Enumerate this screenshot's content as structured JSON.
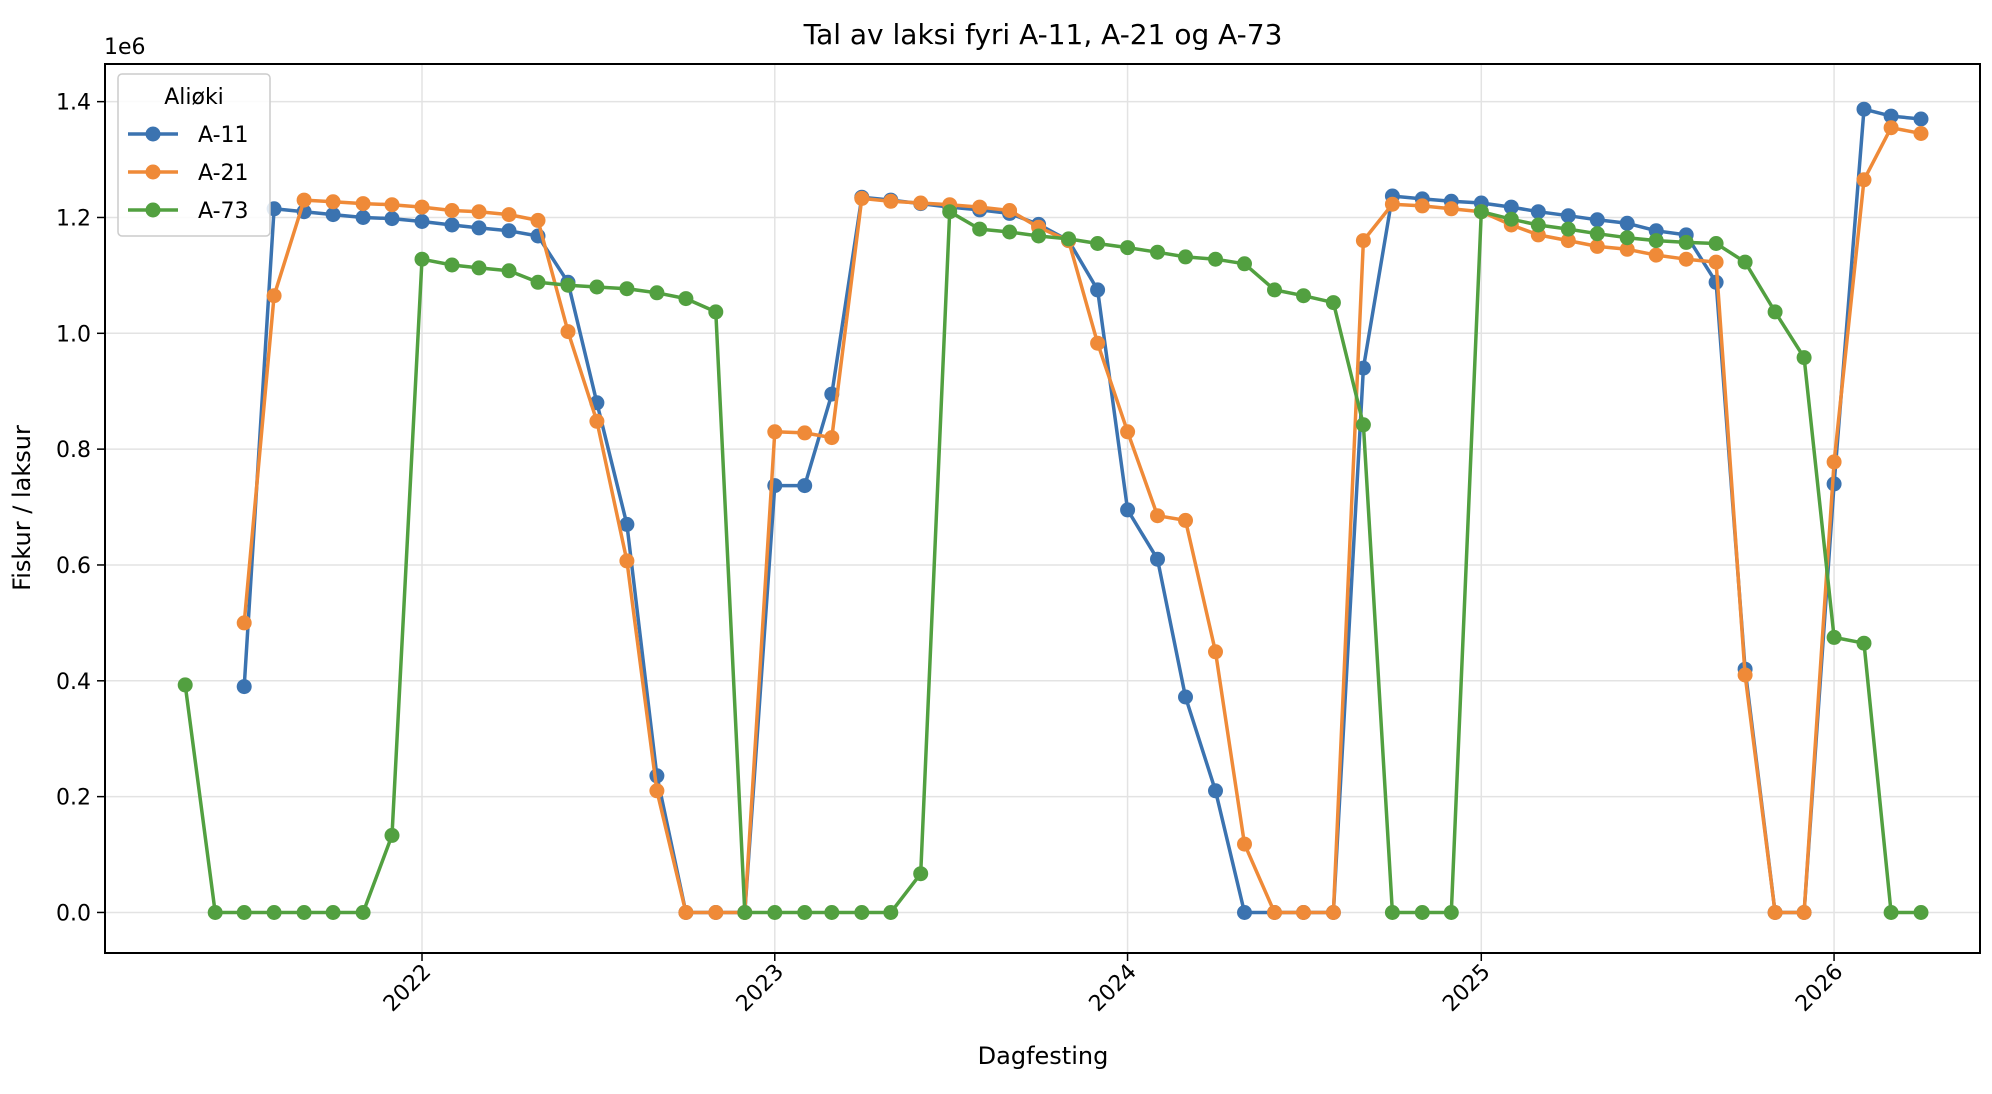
{
  "chart_data": {
    "type": "line",
    "title": "Tal av laksi fyri A-11, A-21 og A-73",
    "xlabel": "Dagfesting",
    "ylabel": "Fiskur / laksur",
    "y_offset_label": "1e6",
    "legend_title": "Aliøki",
    "legend_position": "top-left",
    "grid": true,
    "x_ticks": [
      "2022",
      "2023",
      "2024",
      "2025",
      "2026"
    ],
    "y_ticks": [
      "0.0",
      "0.2",
      "0.4",
      "0.6",
      "0.8",
      "1.0",
      "1.2",
      "1.4"
    ],
    "y_tick_values": [
      0,
      0.2,
      0.4,
      0.6,
      0.8,
      1.0,
      1.2,
      1.4
    ],
    "xlim": [
      "2021-02-07",
      "2026-06-01"
    ],
    "ylim": [
      -0.07,
      1.465
    ],
    "y_unit_multiplier": 1000000,
    "series": [
      {
        "name": "A-11",
        "color": "#3b73b0",
        "points": [
          [
            "2021-07-01",
            0.39
          ],
          [
            "2021-08-01",
            1.215
          ],
          [
            "2021-09-01",
            1.21
          ],
          [
            "2021-10-01",
            1.205
          ],
          [
            "2021-11-01",
            1.2
          ],
          [
            "2021-12-01",
            1.198
          ],
          [
            "2022-01-01",
            1.193
          ],
          [
            "2022-02-01",
            1.187
          ],
          [
            "2022-03-01",
            1.182
          ],
          [
            "2022-04-01",
            1.177
          ],
          [
            "2022-05-01",
            1.168
          ],
          [
            "2022-06-01",
            1.088
          ],
          [
            "2022-07-01",
            0.88
          ],
          [
            "2022-08-01",
            0.67
          ],
          [
            "2022-09-01",
            0.236
          ],
          [
            "2022-10-01",
            0.0
          ],
          [
            "2022-11-01",
            0.0
          ],
          [
            "2022-12-01",
            0.0
          ],
          [
            "2023-01-01",
            0.737
          ],
          [
            "2023-02-01",
            0.737
          ],
          [
            "2023-03-01",
            0.895
          ],
          [
            "2023-04-01",
            1.235
          ],
          [
            "2023-05-01",
            1.23
          ],
          [
            "2023-06-01",
            1.224
          ],
          [
            "2023-07-01",
            1.218
          ],
          [
            "2023-08-01",
            1.213
          ],
          [
            "2023-09-01",
            1.207
          ],
          [
            "2023-10-01",
            1.188
          ],
          [
            "2023-11-01",
            1.16
          ],
          [
            "2023-12-01",
            1.075
          ],
          [
            "2024-01-01",
            0.695
          ],
          [
            "2024-02-01",
            0.61
          ],
          [
            "2024-03-01",
            0.372
          ],
          [
            "2024-04-01",
            0.21
          ],
          [
            "2024-05-01",
            0.0
          ],
          [
            "2024-06-01",
            0.0
          ],
          [
            "2024-07-01",
            0.0
          ],
          [
            "2024-08-01",
            0.0
          ],
          [
            "2024-09-01",
            0.94
          ],
          [
            "2024-10-01",
            1.237
          ],
          [
            "2024-11-01",
            1.232
          ],
          [
            "2024-12-01",
            1.228
          ],
          [
            "2025-01-01",
            1.225
          ],
          [
            "2025-02-01",
            1.218
          ],
          [
            "2025-03-01",
            1.21
          ],
          [
            "2025-04-01",
            1.203
          ],
          [
            "2025-05-01",
            1.196
          ],
          [
            "2025-06-01",
            1.19
          ],
          [
            "2025-07-01",
            1.177
          ],
          [
            "2025-08-01",
            1.17
          ],
          [
            "2025-09-01",
            1.088
          ],
          [
            "2025-10-01",
            0.42
          ],
          [
            "2025-11-01",
            0.0
          ],
          [
            "2025-12-01",
            0.0
          ],
          [
            "2026-01-01",
            0.74
          ],
          [
            "2026-02-01",
            1.387
          ],
          [
            "2026-03-01",
            1.375
          ],
          [
            "2026-04-01",
            1.37
          ]
        ]
      },
      {
        "name": "A-21",
        "color": "#ef8a38",
        "points": [
          [
            "2021-07-01",
            0.5
          ],
          [
            "2021-08-01",
            1.065
          ],
          [
            "2021-09-01",
            1.23
          ],
          [
            "2021-10-01",
            1.227
          ],
          [
            "2021-11-01",
            1.224
          ],
          [
            "2021-12-01",
            1.222
          ],
          [
            "2022-01-01",
            1.218
          ],
          [
            "2022-02-01",
            1.212
          ],
          [
            "2022-03-01",
            1.21
          ],
          [
            "2022-04-01",
            1.205
          ],
          [
            "2022-05-01",
            1.195
          ],
          [
            "2022-06-01",
            1.003
          ],
          [
            "2022-07-01",
            0.848
          ],
          [
            "2022-08-01",
            0.607
          ],
          [
            "2022-09-01",
            0.21
          ],
          [
            "2022-10-01",
            0.0
          ],
          [
            "2022-11-01",
            0.0
          ],
          [
            "2022-12-01",
            0.0
          ],
          [
            "2023-01-01",
            0.83
          ],
          [
            "2023-02-01",
            0.828
          ],
          [
            "2023-03-01",
            0.82
          ],
          [
            "2023-04-01",
            1.233
          ],
          [
            "2023-05-01",
            1.228
          ],
          [
            "2023-06-01",
            1.225
          ],
          [
            "2023-07-01",
            1.222
          ],
          [
            "2023-08-01",
            1.218
          ],
          [
            "2023-09-01",
            1.212
          ],
          [
            "2023-10-01",
            1.183
          ],
          [
            "2023-11-01",
            1.16
          ],
          [
            "2023-12-01",
            0.983
          ],
          [
            "2024-01-01",
            0.83
          ],
          [
            "2024-02-01",
            0.685
          ],
          [
            "2024-03-01",
            0.677
          ],
          [
            "2024-04-01",
            0.45
          ],
          [
            "2024-05-01",
            0.118
          ],
          [
            "2024-06-01",
            0.0
          ],
          [
            "2024-07-01",
            0.0
          ],
          [
            "2024-08-01",
            0.0
          ],
          [
            "2024-09-01",
            1.16
          ],
          [
            "2024-10-01",
            1.223
          ],
          [
            "2024-11-01",
            1.22
          ],
          [
            "2024-12-01",
            1.215
          ],
          [
            "2025-01-01",
            1.21
          ],
          [
            "2025-02-01",
            1.187
          ],
          [
            "2025-03-01",
            1.17
          ],
          [
            "2025-04-01",
            1.16
          ],
          [
            "2025-05-01",
            1.15
          ],
          [
            "2025-06-01",
            1.145
          ],
          [
            "2025-07-01",
            1.135
          ],
          [
            "2025-08-01",
            1.128
          ],
          [
            "2025-09-01",
            1.123
          ],
          [
            "2025-10-01",
            0.41
          ],
          [
            "2025-11-01",
            0.0
          ],
          [
            "2025-12-01",
            0.0
          ],
          [
            "2026-01-01",
            0.778
          ],
          [
            "2026-02-01",
            1.265
          ],
          [
            "2026-03-01",
            1.355
          ],
          [
            "2026-04-01",
            1.345
          ]
        ]
      },
      {
        "name": "A-73",
        "color": "#52a040",
        "points": [
          [
            "2021-05-01",
            0.393
          ],
          [
            "2021-06-01",
            0.0
          ],
          [
            "2021-07-01",
            0.0
          ],
          [
            "2021-08-01",
            0.0
          ],
          [
            "2021-09-01",
            0.0
          ],
          [
            "2021-10-01",
            0.0
          ],
          [
            "2021-11-01",
            0.0
          ],
          [
            "2021-12-01",
            0.133
          ],
          [
            "2022-01-01",
            1.128
          ],
          [
            "2022-02-01",
            1.118
          ],
          [
            "2022-03-01",
            1.113
          ],
          [
            "2022-04-01",
            1.108
          ],
          [
            "2022-05-01",
            1.088
          ],
          [
            "2022-06-01",
            1.083
          ],
          [
            "2022-07-01",
            1.08
          ],
          [
            "2022-08-01",
            1.077
          ],
          [
            "2022-09-01",
            1.07
          ],
          [
            "2022-10-01",
            1.06
          ],
          [
            "2022-11-01",
            1.037
          ],
          [
            "2022-12-01",
            0.0
          ],
          [
            "2023-01-01",
            0.0
          ],
          [
            "2023-02-01",
            0.0
          ],
          [
            "2023-03-01",
            0.0
          ],
          [
            "2023-04-01",
            0.0
          ],
          [
            "2023-05-01",
            0.0
          ],
          [
            "2023-06-01",
            0.067
          ],
          [
            "2023-07-01",
            1.21
          ],
          [
            "2023-08-01",
            1.18
          ],
          [
            "2023-09-01",
            1.175
          ],
          [
            "2023-10-01",
            1.168
          ],
          [
            "2023-11-01",
            1.163
          ],
          [
            "2023-12-01",
            1.155
          ],
          [
            "2024-01-01",
            1.148
          ],
          [
            "2024-02-01",
            1.14
          ],
          [
            "2024-03-01",
            1.132
          ],
          [
            "2024-04-01",
            1.128
          ],
          [
            "2024-05-01",
            1.12
          ],
          [
            "2024-06-01",
            1.075
          ],
          [
            "2024-07-01",
            1.065
          ],
          [
            "2024-08-01",
            1.053
          ],
          [
            "2024-09-01",
            0.842
          ],
          [
            "2024-10-01",
            0.0
          ],
          [
            "2024-11-01",
            0.0
          ],
          [
            "2024-12-01",
            0.0
          ],
          [
            "2025-01-01",
            1.21
          ],
          [
            "2025-02-01",
            1.197
          ],
          [
            "2025-03-01",
            1.187
          ],
          [
            "2025-04-01",
            1.18
          ],
          [
            "2025-05-01",
            1.172
          ],
          [
            "2025-06-01",
            1.165
          ],
          [
            "2025-07-01",
            1.16
          ],
          [
            "2025-08-01",
            1.157
          ],
          [
            "2025-09-01",
            1.155
          ],
          [
            "2025-10-01",
            1.123
          ],
          [
            "2025-11-01",
            1.037
          ],
          [
            "2025-12-01",
            0.958
          ],
          [
            "2026-01-01",
            0.475
          ],
          [
            "2026-02-01",
            0.465
          ],
          [
            "2026-03-01",
            0.0
          ],
          [
            "2026-04-01",
            0.0
          ]
        ]
      }
    ]
  }
}
